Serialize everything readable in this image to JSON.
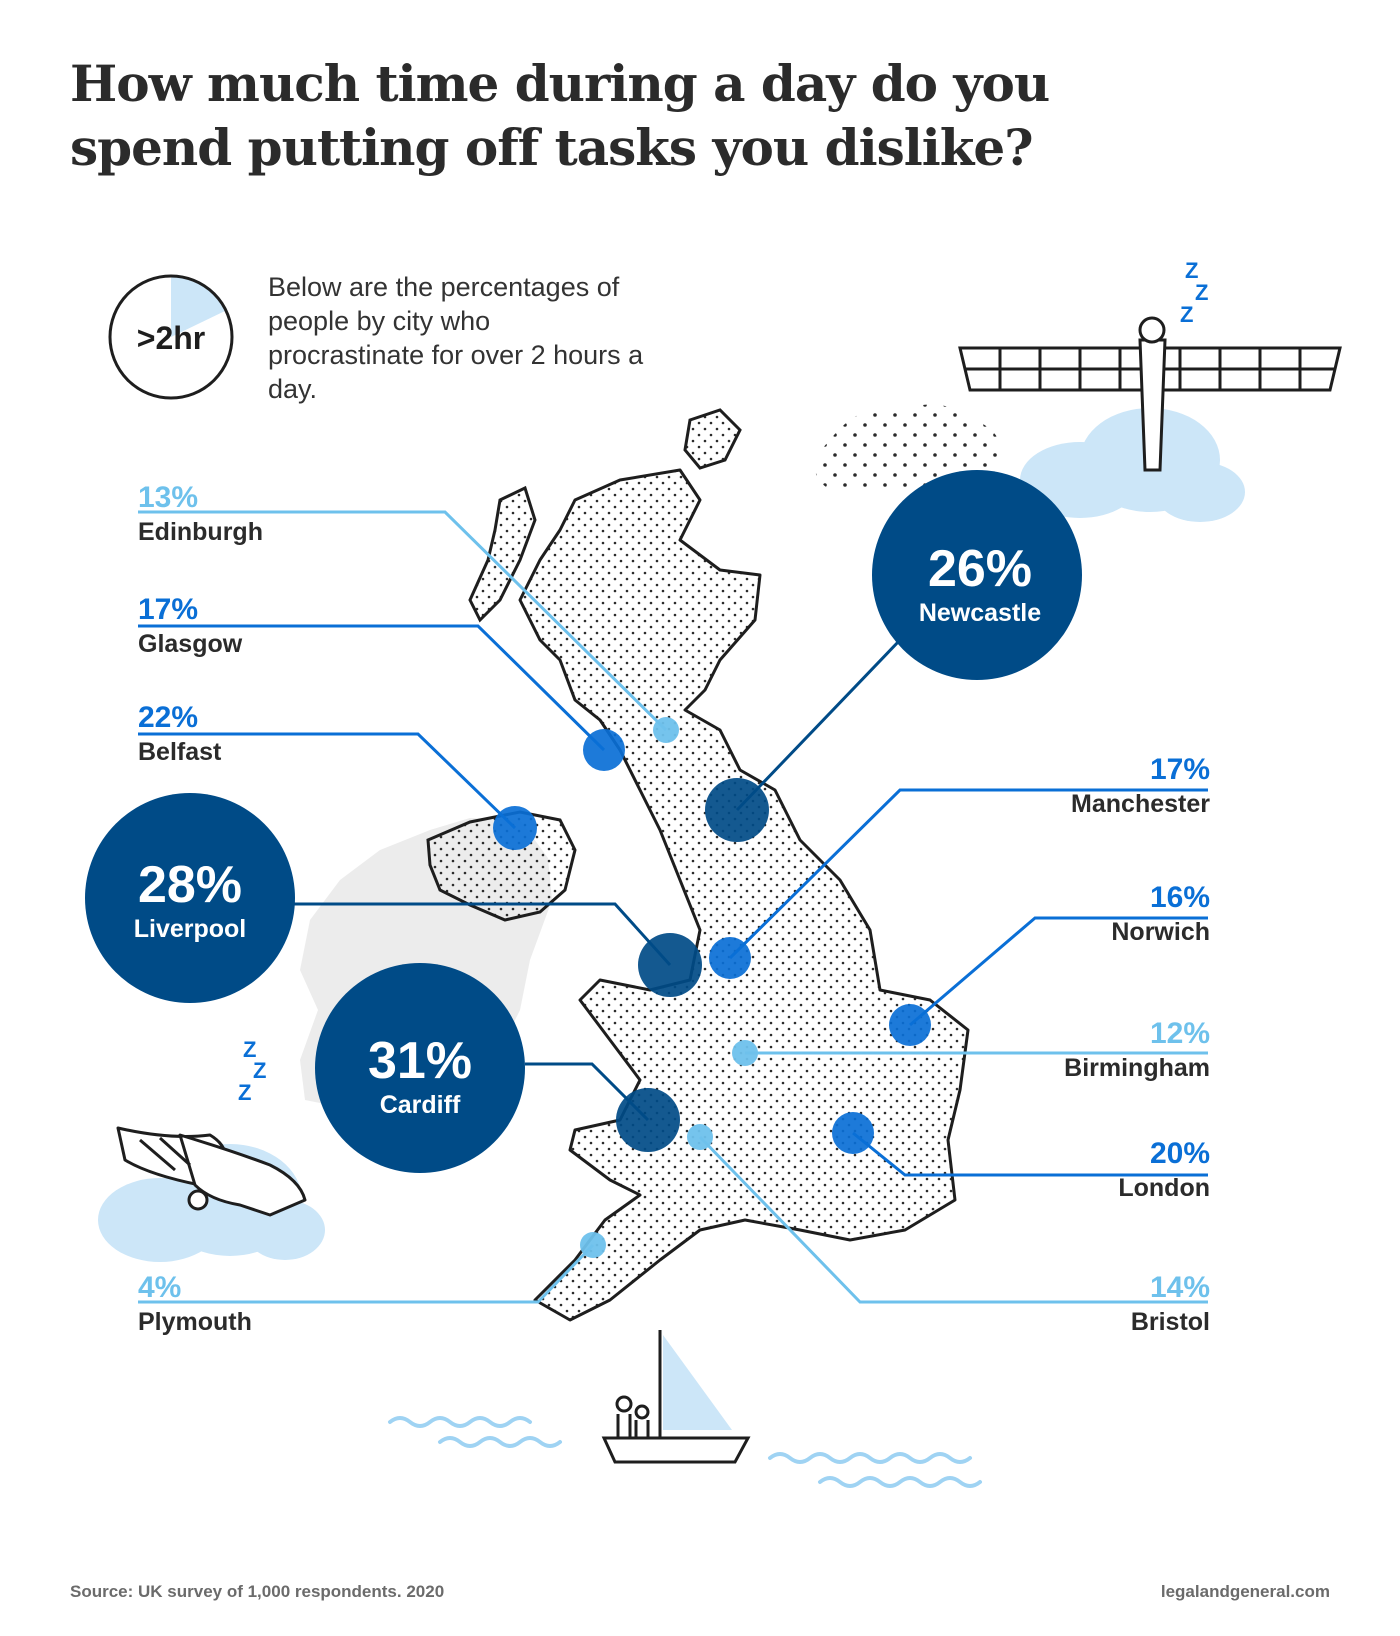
{
  "title": "How much time during a day do you spend putting off tasks you dislike?",
  "legend": {
    "badge": ">2hr",
    "text": "Below are the percentages of people by city who procrastinate for over 2 hours a day."
  },
  "colors": {
    "high": "#004b87",
    "mid": "#0a6fd6",
    "low": "#6ec1ec",
    "cloud": "#cce6f8"
  },
  "icons": [
    "zzz-icon",
    "angel-of-the-north-icon",
    "cloud-icon",
    "sleeping-dragon-icon",
    "sailboat-icon",
    "wave-icon"
  ],
  "cities": {
    "edinburgh": {
      "name": "Edinburgh",
      "pct": "13%",
      "value": 13,
      "level": "low"
    },
    "glasgow": {
      "name": "Glasgow",
      "pct": "17%",
      "value": 17,
      "level": "mid"
    },
    "belfast": {
      "name": "Belfast",
      "pct": "22%",
      "value": 22,
      "level": "mid"
    },
    "liverpool": {
      "name": "Liverpool",
      "pct": "28%",
      "value": 28,
      "level": "high"
    },
    "cardiff": {
      "name": "Cardiff",
      "pct": "31%",
      "value": 31,
      "level": "high"
    },
    "plymouth": {
      "name": "Plymouth",
      "pct": "4%",
      "value": 4,
      "level": "low"
    },
    "newcastle": {
      "name": "Newcastle",
      "pct": "26%",
      "value": 26,
      "level": "high"
    },
    "manchester": {
      "name": "Manchester",
      "pct": "17%",
      "value": 17,
      "level": "mid"
    },
    "norwich": {
      "name": "Norwich",
      "pct": "16%",
      "value": 16,
      "level": "mid"
    },
    "birmingham": {
      "name": "Birmingham",
      "pct": "12%",
      "value": 12,
      "level": "low"
    },
    "london": {
      "name": "London",
      "pct": "20%",
      "value": 20,
      "level": "mid"
    },
    "bristol": {
      "name": "Bristol",
      "pct": "14%",
      "value": 14,
      "level": "low"
    }
  },
  "footer": {
    "source": "Source: UK survey of 1,000 respondents. 2020",
    "site": "legalandgeneral.com"
  }
}
